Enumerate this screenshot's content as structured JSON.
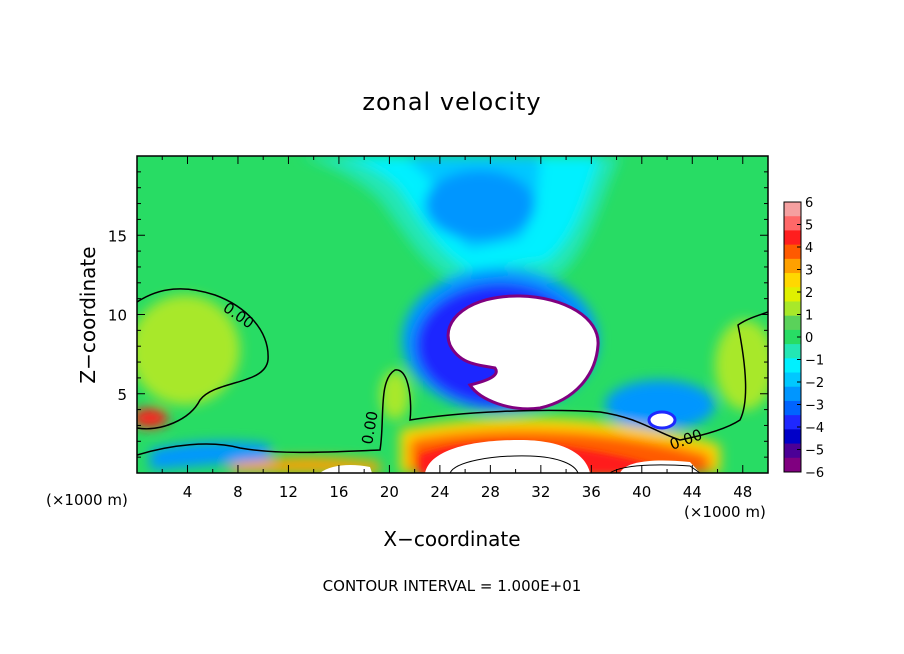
{
  "chart_data": {
    "type": "heatmap",
    "title": "zonal velocity",
    "xlabel": "X−coordinate",
    "ylabel": "Z−coordinate",
    "x_unit": "(×1000 m)",
    "y_unit": "(×1000 m)",
    "xlim": [
      0,
      50
    ],
    "ylim": [
      0,
      20
    ],
    "x_ticks": [
      4,
      8,
      12,
      16,
      20,
      24,
      28,
      32,
      36,
      40,
      44,
      48
    ],
    "y_ticks": [
      5,
      10,
      15
    ],
    "contour_label": "0.00",
    "colorbar": {
      "min": -6,
      "max": 6,
      "labels": [
        "6",
        "5",
        "4",
        "3",
        "2",
        "1",
        "0",
        "−1",
        "−2",
        "−3",
        "−4",
        "−5",
        "−6"
      ],
      "colors": [
        "#f5a0a0",
        "#ff6868",
        "#ff1e1e",
        "#ff5a00",
        "#ffa000",
        "#ffd800",
        "#e0f000",
        "#a8e82a",
        "#5ad25a",
        "#28dc64",
        "#23e6b4",
        "#00f0ff",
        "#00c8ff",
        "#0096ff",
        "#0064ff",
        "#1e28ff",
        "#0000c8",
        "#4b0096",
        "#800080"
      ]
    },
    "annotation": "CONTOUR INTERVAL = 1.000E+01"
  }
}
